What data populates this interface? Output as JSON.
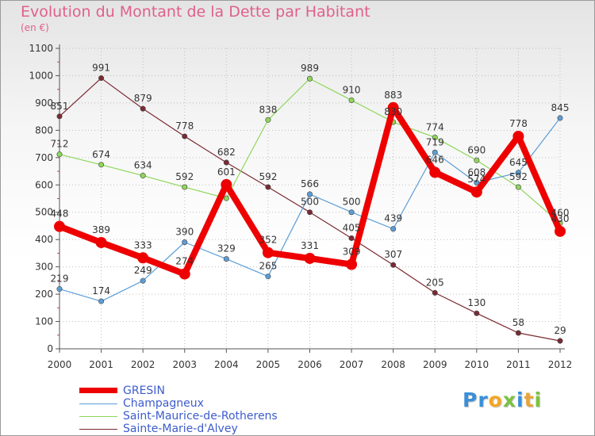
{
  "header": {
    "title": "Evolution du Montant de la Dette par Habitant",
    "unit": "(en €)"
  },
  "chart_data": {
    "type": "line",
    "title": "Evolution du Montant de la Dette par Habitant",
    "subtitle": "(en €)",
    "xlabel": "",
    "ylabel": "",
    "x": [
      "2000",
      "2001",
      "2002",
      "2003",
      "2004",
      "2005",
      "2006",
      "2007",
      "2008",
      "2009",
      "2010",
      "2011",
      "2012"
    ],
    "ylim": [
      0,
      1100
    ],
    "yticks": [
      0,
      100,
      200,
      300,
      400,
      500,
      600,
      700,
      800,
      900,
      1000,
      1100
    ],
    "grid": true,
    "legend_position": "bottom-left",
    "series": [
      {
        "name": "Sainte-Marie-d'Alvey",
        "color": "#7a2a33",
        "values": [
          851,
          991,
          879,
          778,
          682,
          592,
          500,
          405,
          307,
          205,
          130,
          58,
          29
        ]
      },
      {
        "name": "Saint-Maurice-de-Rotherens",
        "color": "#8ed65a",
        "values": [
          712,
          674,
          634,
          592,
          551,
          838,
          989,
          910,
          830,
          774,
          690,
          592,
          460
        ]
      },
      {
        "name": "Champagneux",
        "color": "#5c9ed6",
        "values": [
          219,
          174,
          249,
          390,
          329,
          265,
          566,
          500,
          439,
          719,
          608,
          645,
          845
        ]
      },
      {
        "name": "GRESIN",
        "color": "#ee0000",
        "values": [
          448,
          389,
          333,
          274,
          601,
          352,
          331,
          309,
          883,
          646,
          574,
          778,
          430
        ]
      }
    ],
    "data_labels": {
      "Sainte-Marie-d'Alvey": [
        "851",
        "991",
        "879",
        "778",
        "682",
        "592",
        "500",
        "405",
        "307",
        "205",
        "130",
        "58",
        "29"
      ],
      "Saint-Maurice-de-Rotherens": [
        "712",
        "674",
        "634",
        "592",
        "",
        "838",
        "989",
        "910",
        "830",
        "774",
        "690",
        "592",
        "460"
      ],
      "Champagneux": [
        "219",
        "174",
        "249",
        "390",
        "329",
        "265",
        "566",
        "500",
        "439",
        "719",
        "608",
        "645",
        "845"
      ],
      "GRESIN": [
        "448",
        "389",
        "333",
        "274",
        "601",
        "352",
        "331",
        "309",
        "883",
        "646",
        "574",
        "778",
        "430"
      ]
    }
  },
  "legend": {
    "items": [
      {
        "label": "GRESIN",
        "color": "#ee0000"
      },
      {
        "label": "Champagneux",
        "color": "#5c9ed6"
      },
      {
        "label": "Saint-Maurice-de-Rotherens",
        "color": "#8ed65a"
      },
      {
        "label": "Sainte-Marie-d'Alvey",
        "color": "#7a2a33"
      }
    ]
  },
  "logo": {
    "letters": [
      {
        "ch": "P",
        "color": "#3a8fd8"
      },
      {
        "ch": "r",
        "color": "#3a8fd8"
      },
      {
        "ch": "o",
        "color": "#f5a623"
      },
      {
        "ch": "x",
        "color": "#7cc242"
      },
      {
        "ch": "i",
        "color": "#3a8fd8"
      },
      {
        "ch": "t",
        "color": "#e8a53a"
      },
      {
        "ch": "i",
        "color": "#7cc242"
      }
    ]
  }
}
